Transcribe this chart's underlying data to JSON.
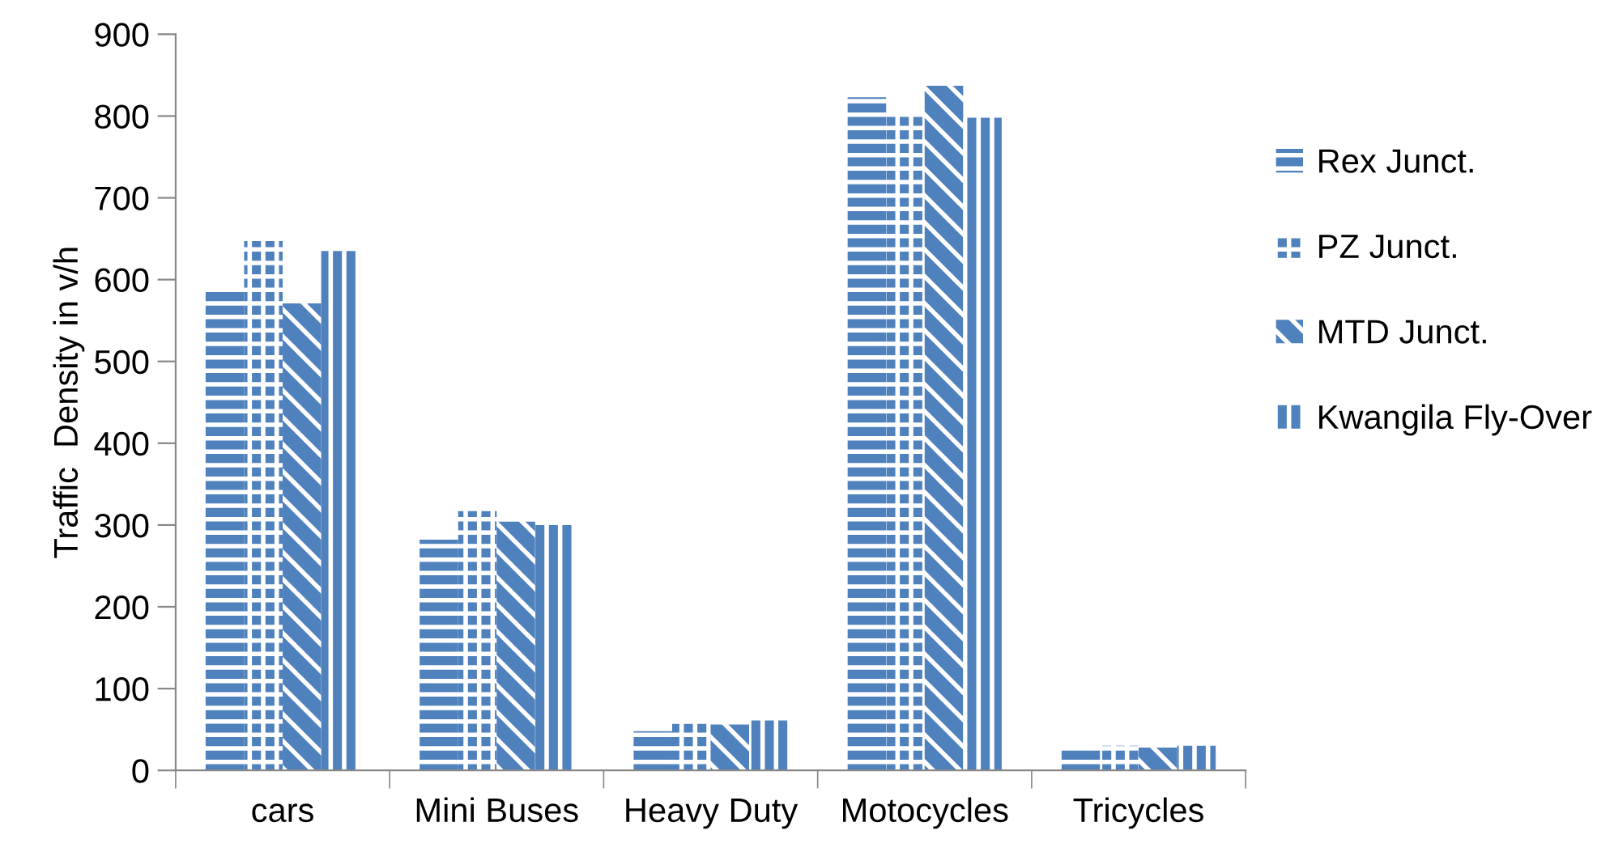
{
  "chart_data": {
    "type": "bar",
    "ylabel": "Traffic  Density in v/h",
    "categories": [
      "cars",
      "Mini Buses",
      "Heavy Duty",
      "Motocycles",
      "Tricycles"
    ],
    "series": [
      {
        "name": "Rex Junct.",
        "color": "#4f81bd",
        "values": [
          589,
          282,
          48,
          823,
          26
        ]
      },
      {
        "name": "PZ Junct.",
        "color": "#4f81bd",
        "values": [
          647,
          317,
          57,
          804,
          30
        ]
      },
      {
        "name": "MTD Junct.",
        "color": "#4f81bd",
        "values": [
          571,
          304,
          56,
          837,
          28
        ]
      },
      {
        "name": "Kwangila Fly-Over",
        "color": "#4f81bd",
        "values": [
          635,
          300,
          61,
          798,
          30
        ]
      }
    ],
    "ylim": [
      0,
      900
    ],
    "yticks": [
      0,
      100,
      200,
      300,
      400,
      500,
      600,
      700,
      800,
      900
    ],
    "grid": false,
    "legend": "right"
  }
}
